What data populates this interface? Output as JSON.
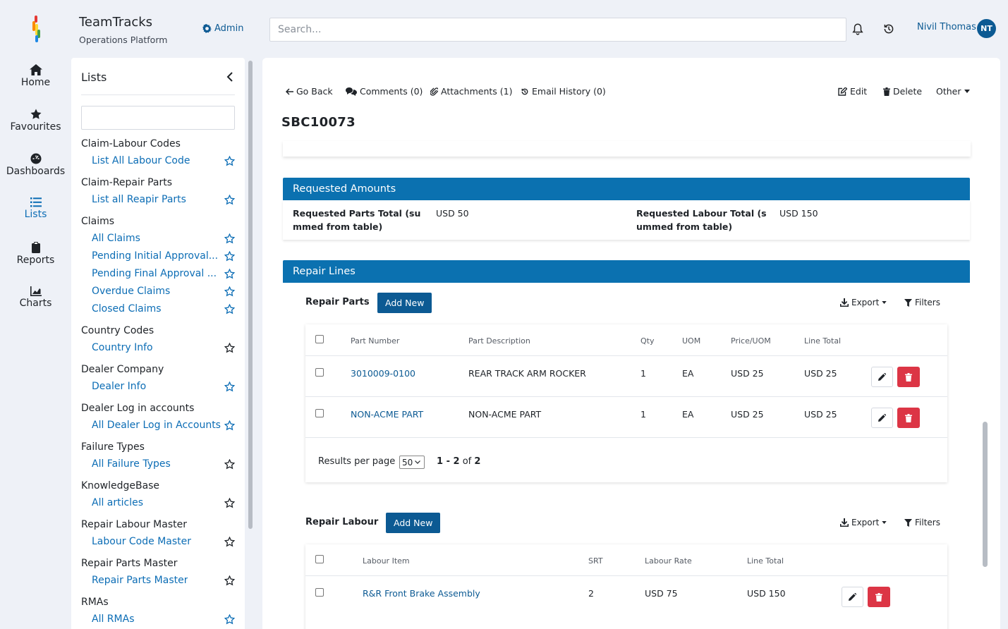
{
  "app": {
    "title": "TeamTracks",
    "subtitle": "Operations Platform",
    "admin_label": "Admin"
  },
  "search": {
    "placeholder": "Search..."
  },
  "user": {
    "name": "Nivil Thomas",
    "initials": "NT"
  },
  "colors": {
    "brand": "#0c5a93",
    "section_header": "#0b71b0",
    "link": "#0c6db5",
    "danger": "#dc3545"
  },
  "nav": [
    {
      "label": "Home",
      "icon": "home-icon"
    },
    {
      "label": "Favourites",
      "icon": "star-icon"
    },
    {
      "label": "Dashboards",
      "icon": "dashboard-icon"
    },
    {
      "label": "Lists",
      "icon": "list-icon",
      "active": true
    },
    {
      "label": "Reports",
      "icon": "clipboard-icon"
    },
    {
      "label": "Charts",
      "icon": "chart-icon"
    }
  ],
  "lists_panel": {
    "title": "Lists",
    "filter_value": "",
    "groups": [
      {
        "title": "Claim-Labour Codes",
        "items": [
          {
            "label": "List All Labour Code",
            "favourite": true
          }
        ]
      },
      {
        "title": "Claim-Repair Parts",
        "items": [
          {
            "label": "List all Reapir Parts",
            "favourite": true
          }
        ]
      },
      {
        "title": "Claims",
        "items": [
          {
            "label": "All Claims",
            "favourite": true
          },
          {
            "label": "Pending Initial Approval...",
            "favourite": true
          },
          {
            "label": "Pending Final Approval ...",
            "favourite": true
          },
          {
            "label": "Overdue Claims",
            "favourite": true
          },
          {
            "label": "Closed Claims",
            "favourite": true
          }
        ]
      },
      {
        "title": "Country Codes",
        "items": [
          {
            "label": "Country Info",
            "favourite": false
          }
        ]
      },
      {
        "title": "Dealer Company",
        "items": [
          {
            "label": "Dealer Info",
            "favourite": true
          }
        ]
      },
      {
        "title": "Dealer Log in accounts",
        "items": [
          {
            "label": "All Dealer Log in Accounts",
            "favourite": true
          }
        ]
      },
      {
        "title": "Failure Types",
        "items": [
          {
            "label": "All Failure Types",
            "favourite": false
          }
        ]
      },
      {
        "title": "KnowledgeBase",
        "items": [
          {
            "label": "All articles",
            "favourite": false
          }
        ]
      },
      {
        "title": "Repair Labour Master",
        "items": [
          {
            "label": "Labour Code Master",
            "favourite": false
          }
        ]
      },
      {
        "title": "Repair Parts Master",
        "items": [
          {
            "label": "Repair Parts Master",
            "favourite": false
          }
        ]
      },
      {
        "title": "RMAs",
        "items": [
          {
            "label": "All RMAs",
            "favourite": true
          }
        ]
      }
    ]
  },
  "toolbar": {
    "go_back": "Go Back",
    "comments": "Comments (0)",
    "attachments": "Attachments (1)",
    "email_history": "Email History (0)",
    "edit": "Edit",
    "delete": "Delete",
    "other": "Other"
  },
  "record": {
    "id": "SBC10073"
  },
  "requested_amounts": {
    "title": "Requested Amounts",
    "parts_label_l1": "Requested Parts Total (su",
    "parts_label_l2": "mmed from table)",
    "parts_value": "USD 50",
    "labour_label_l1": "Requested Labour Total (s",
    "labour_label_l2": "ummed from table)",
    "labour_value": "USD 150"
  },
  "repair_lines": {
    "title": "Repair Lines",
    "parts": {
      "title": "Repair Parts",
      "add_label": "Add New",
      "export_label": "Export",
      "filters_label": "Filters",
      "columns": [
        "Part Number",
        "Part Description",
        "Qty",
        "UOM",
        "Price/UOM",
        "Line Total"
      ],
      "rows": [
        {
          "part_number": "3010009-0100",
          "description": "REAR TRACK ARM ROCKER",
          "qty": "1",
          "uom": "EA",
          "price": "USD 25",
          "total": "USD 25"
        },
        {
          "part_number": "NON-ACME PART",
          "description": "NON-ACME PART",
          "qty": "1",
          "uom": "EA",
          "price": "USD 25",
          "total": "USD 25"
        }
      ],
      "results_per_page_label": "Results per page",
      "results_per_page": "50",
      "range": "1 - 2",
      "of_label": "of",
      "total": "2"
    },
    "labour": {
      "title": "Repair Labour",
      "add_label": "Add New",
      "export_label": "Export",
      "filters_label": "Filters",
      "columns": [
        "Labour Item",
        "SRT",
        "Labour Rate",
        "Line Total"
      ],
      "rows": [
        {
          "item": "R&R Front Brake Assembly",
          "srt": "2",
          "rate": "USD 75",
          "total": "USD 150"
        }
      ]
    }
  }
}
